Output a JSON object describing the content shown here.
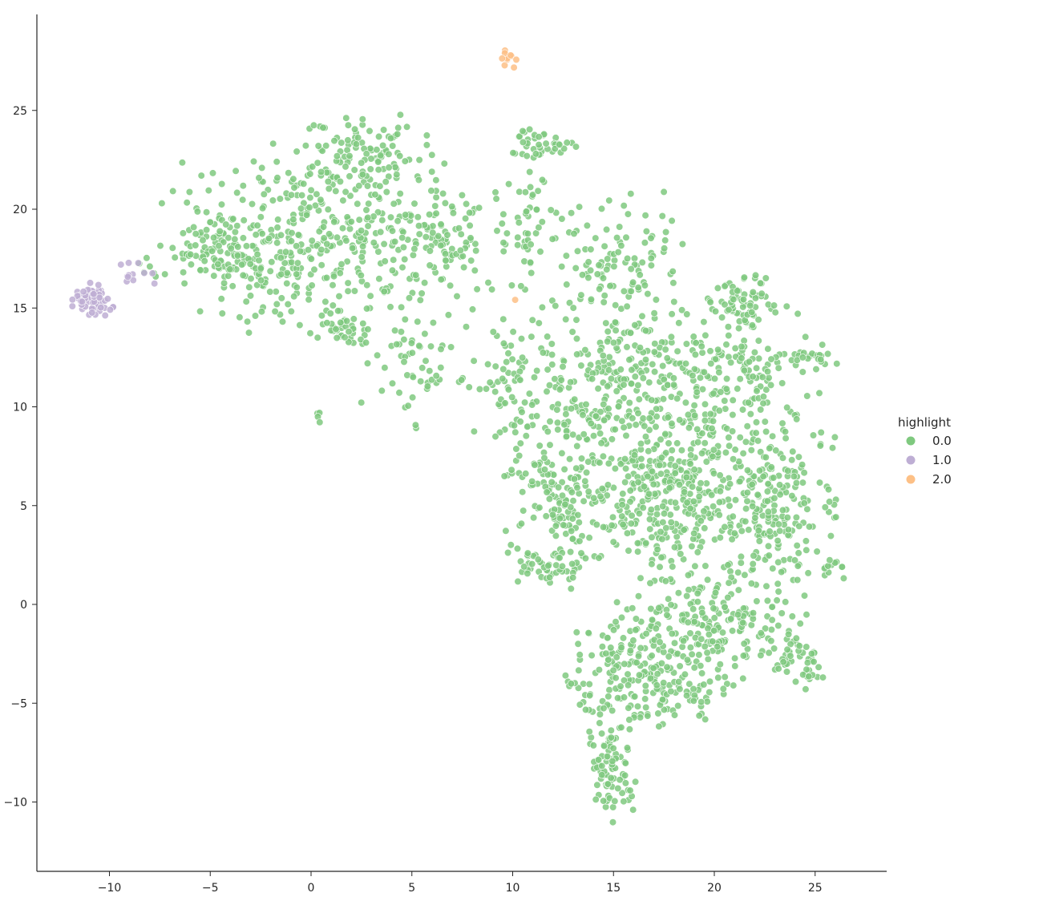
{
  "chart_data": {
    "type": "scatter",
    "title": "",
    "xlabel": "",
    "ylabel": "",
    "xlim": [
      -13.6,
      28.6
    ],
    "ylim": [
      -13.5,
      29.5
    ],
    "x_ticks": [
      -10,
      -5,
      0,
      5,
      10,
      15,
      20,
      25
    ],
    "x_tick_labels": [
      "−10",
      "−5",
      "0",
      "5",
      "10",
      "15",
      "20",
      "25"
    ],
    "y_ticks": [
      -10,
      -5,
      0,
      5,
      10,
      15,
      20,
      25
    ],
    "y_tick_labels": [
      "−10",
      "−5",
      "0",
      "5",
      "10",
      "15",
      "20",
      "25"
    ],
    "grid": false,
    "legend": {
      "title": "highlight",
      "placement": "right",
      "entries": [
        {
          "label": "0.0",
          "color": "#7fc97f"
        },
        {
          "label": "1.0",
          "color": "#beaed4"
        },
        {
          "label": "2.0",
          "color": "#fdc086"
        }
      ]
    },
    "series": [
      {
        "label": "0.0",
        "color": "#7fc97f",
        "regions": [
          {
            "cx": 0.5,
            "cy": 18.5,
            "rx": 6.5,
            "ry": 4.2,
            "n": 430
          },
          {
            "cx": 2.8,
            "cy": 22.8,
            "rx": 2.6,
            "ry": 1.6,
            "n": 95
          },
          {
            "cx": -4.5,
            "cy": 17.8,
            "rx": 2.8,
            "ry": 1.6,
            "n": 90
          },
          {
            "cx": 1.5,
            "cy": 13.8,
            "rx": 1.4,
            "ry": 0.9,
            "n": 35
          },
          {
            "cx": 6.5,
            "cy": 18.5,
            "rx": 2.0,
            "ry": 2.0,
            "n": 60
          },
          {
            "cx": 11.5,
            "cy": 23.3,
            "rx": 1.4,
            "ry": 0.8,
            "n": 40
          },
          {
            "cx": 10.5,
            "cy": 19.0,
            "rx": 2.2,
            "ry": 3.0,
            "n": 55
          },
          {
            "cx": 15.0,
            "cy": 17.5,
            "rx": 3.0,
            "ry": 3.0,
            "n": 110
          },
          {
            "cx": 5.5,
            "cy": 12.0,
            "rx": 2.5,
            "ry": 3.0,
            "n": 55
          },
          {
            "cx": 10.5,
            "cy": 11.0,
            "rx": 2.0,
            "ry": 4.0,
            "n": 90
          },
          {
            "cx": 15.5,
            "cy": 11.0,
            "rx": 3.5,
            "ry": 4.0,
            "n": 260
          },
          {
            "cx": 21.0,
            "cy": 11.0,
            "rx": 3.5,
            "ry": 4.0,
            "n": 200
          },
          {
            "cx": 21.5,
            "cy": 15.5,
            "rx": 1.5,
            "ry": 1.2,
            "n": 60
          },
          {
            "cx": 25.0,
            "cy": 12.5,
            "rx": 1.2,
            "ry": 0.6,
            "n": 20
          },
          {
            "cx": 12.5,
            "cy": 5.0,
            "rx": 2.5,
            "ry": 3.5,
            "n": 170
          },
          {
            "cx": 17.5,
            "cy": 5.5,
            "rx": 3.0,
            "ry": 3.5,
            "n": 280
          },
          {
            "cx": 22.5,
            "cy": 5.0,
            "rx": 3.0,
            "ry": 3.5,
            "n": 230
          },
          {
            "cx": 11.5,
            "cy": 2.0,
            "rx": 1.5,
            "ry": 0.8,
            "n": 35
          },
          {
            "cx": 20.0,
            "cy": -1.0,
            "rx": 4.5,
            "ry": 2.5,
            "n": 220
          },
          {
            "cx": 24.0,
            "cy": -3.0,
            "rx": 1.2,
            "ry": 1.2,
            "n": 45
          },
          {
            "cx": 15.5,
            "cy": -3.5,
            "rx": 2.5,
            "ry": 2.5,
            "n": 140
          },
          {
            "cx": 18.5,
            "cy": -4.5,
            "rx": 2.0,
            "ry": 1.5,
            "n": 60
          },
          {
            "cx": 15.0,
            "cy": -8.0,
            "rx": 1.0,
            "ry": 2.5,
            "n": 90
          },
          {
            "cx": 26.0,
            "cy": 1.8,
            "rx": 0.6,
            "ry": 0.4,
            "n": 10
          },
          {
            "cx": 0.3,
            "cy": 9.5,
            "rx": 0.3,
            "ry": 0.3,
            "n": 4
          },
          {
            "cx": -8.0,
            "cy": 17.0,
            "rx": 0.7,
            "ry": 0.6,
            "n": 6
          }
        ]
      },
      {
        "label": "1.0",
        "color": "#beaed4",
        "regions": [
          {
            "cx": -11.0,
            "cy": 15.4,
            "rx": 0.9,
            "ry": 0.7,
            "n": 60
          },
          {
            "cx": -8.8,
            "cy": 16.6,
            "rx": 1.0,
            "ry": 0.6,
            "n": 12
          },
          {
            "cx": -10.0,
            "cy": 15.0,
            "rx": 0.3,
            "ry": 0.2,
            "n": 3
          }
        ]
      },
      {
        "label": "2.0",
        "color": "#fdc086",
        "regions": [
          {
            "cx": 9.8,
            "cy": 27.6,
            "rx": 0.4,
            "ry": 0.4,
            "n": 10
          },
          {
            "cx": 10.15,
            "cy": 15.4,
            "rx": 0.05,
            "ry": 0.05,
            "n": 1
          }
        ]
      }
    ]
  }
}
